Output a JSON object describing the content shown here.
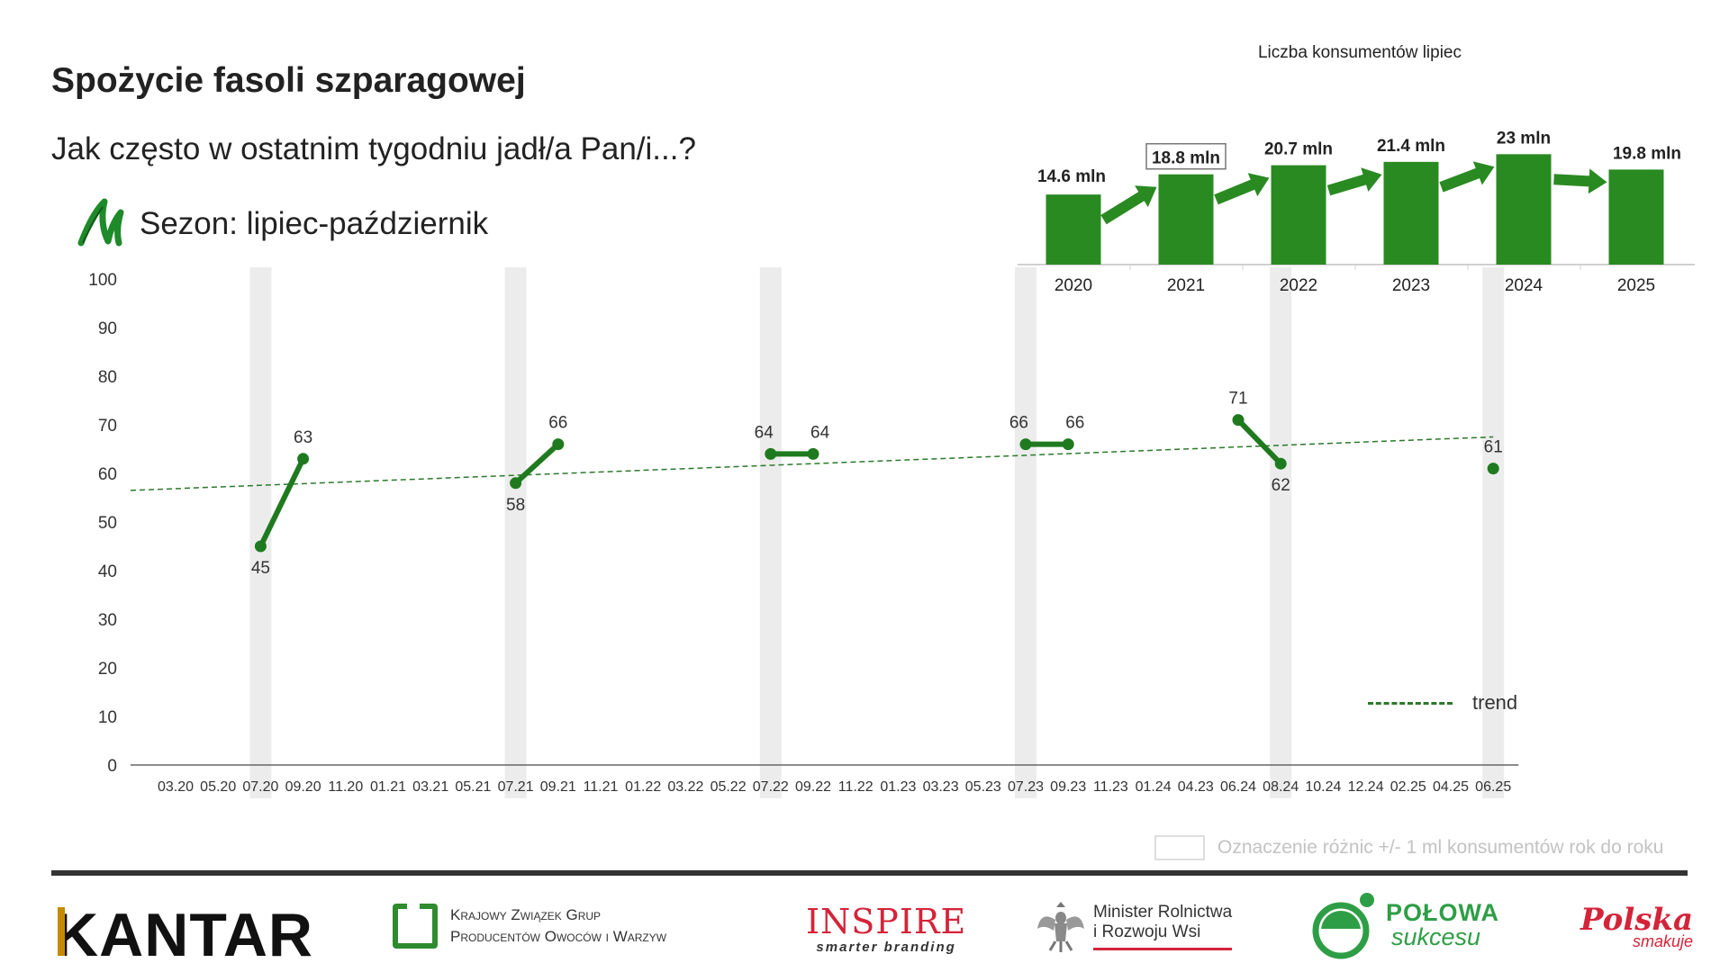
{
  "header": {
    "title": "Spożycie fasoli szparagowej",
    "subtitle": "Jak często w ostatnim tygodniu jadł/a Pan/i...?",
    "season_label": "Sezon: lipiec-październik"
  },
  "chart_data": [
    {
      "type": "line",
      "categories": [
        "03.20",
        "05.20",
        "07.20",
        "09.20",
        "11.20",
        "01.21",
        "03.21",
        "05.21",
        "07.21",
        "09.21",
        "11.21",
        "01.22",
        "03.22",
        "05.22",
        "07.22",
        "09.22",
        "11.22",
        "01.23",
        "03.23",
        "05.23",
        "07.23",
        "09.23",
        "11.23",
        "01.24",
        "04.23",
        "06.24",
        "08.24",
        "10.24",
        "12.24",
        "02.25",
        "04.25",
        "06.25"
      ],
      "ylim": [
        0,
        100
      ],
      "yticks": [
        0,
        10,
        20,
        30,
        40,
        50,
        60,
        70,
        80,
        90,
        100
      ],
      "grid": false,
      "seasons": [
        {
          "points": [
            {
              "x": "07.20",
              "value": 45
            },
            {
              "x": "09.20",
              "value": 63
            }
          ]
        },
        {
          "points": [
            {
              "x": "07.21",
              "value": 58
            },
            {
              "x": "09.21",
              "value": 66
            }
          ]
        },
        {
          "points": [
            {
              "x": "07.22",
              "value": 64
            },
            {
              "x": "09.22",
              "value": 64
            }
          ]
        },
        {
          "points": [
            {
              "x": "07.23",
              "value": 66
            },
            {
              "x": "09.23",
              "value": 66
            }
          ]
        },
        {
          "points": [
            {
              "x": "06.24",
              "value": 71
            },
            {
              "x": "08.24",
              "value": 62
            }
          ]
        },
        {
          "points": [
            {
              "x": "06.25",
              "value": 61
            }
          ]
        }
      ],
      "highlight_months": [
        "07.20",
        "07.21",
        "07.22",
        "07.23",
        "08.24",
        "06.25"
      ],
      "trend": {
        "label": "trend",
        "start": 56.5,
        "end": 67.5
      },
      "colors": {
        "series": "#1f7a1f",
        "trend": "#2b7a2b",
        "highlight": "#ececec"
      }
    },
    {
      "type": "bar",
      "title": "Liczba konsumentów lipiec",
      "categories": [
        "2020",
        "2021",
        "2022",
        "2023",
        "2024",
        "2025"
      ],
      "values": [
        14.6,
        18.8,
        20.7,
        21.4,
        23,
        19.8
      ],
      "value_labels": [
        "14.6 mln",
        "18.8 mln",
        "20.7 mln",
        "21.4 mln",
        "23 mln",
        "19.8 mln"
      ],
      "boxed_labels": [
        "18.8 mln"
      ],
      "ylim": [
        0,
        24
      ],
      "colors": {
        "bar": "#2a8a22",
        "arrow": "#2a8a22"
      }
    }
  ],
  "legend": {
    "trend_label": "trend",
    "diff_note": "Oznaczenie różnic +/- 1 ml konsumentów rok do roku"
  },
  "footer": {
    "logos": {
      "kantar": "KANTAR",
      "kzgp_line1": "Krajowy Związek Grup",
      "kzgp_line2": "Producentów Owoców i Warzyw",
      "inspire_main": "INSPIRE",
      "inspire_tagline": "smarter branding",
      "minister_line1": "Minister Rolnictwa",
      "minister_line2": "i Rozwoju Wsi",
      "polowa_line1": "POŁOWA",
      "polowa_line2": "sukcesu",
      "polska_line1": "Polska",
      "polska_line2": "smakuje"
    },
    "icons": [
      "kzgp-logo-icon",
      "eagle-emblem-icon",
      "polowa-sukcesu-icon"
    ]
  }
}
